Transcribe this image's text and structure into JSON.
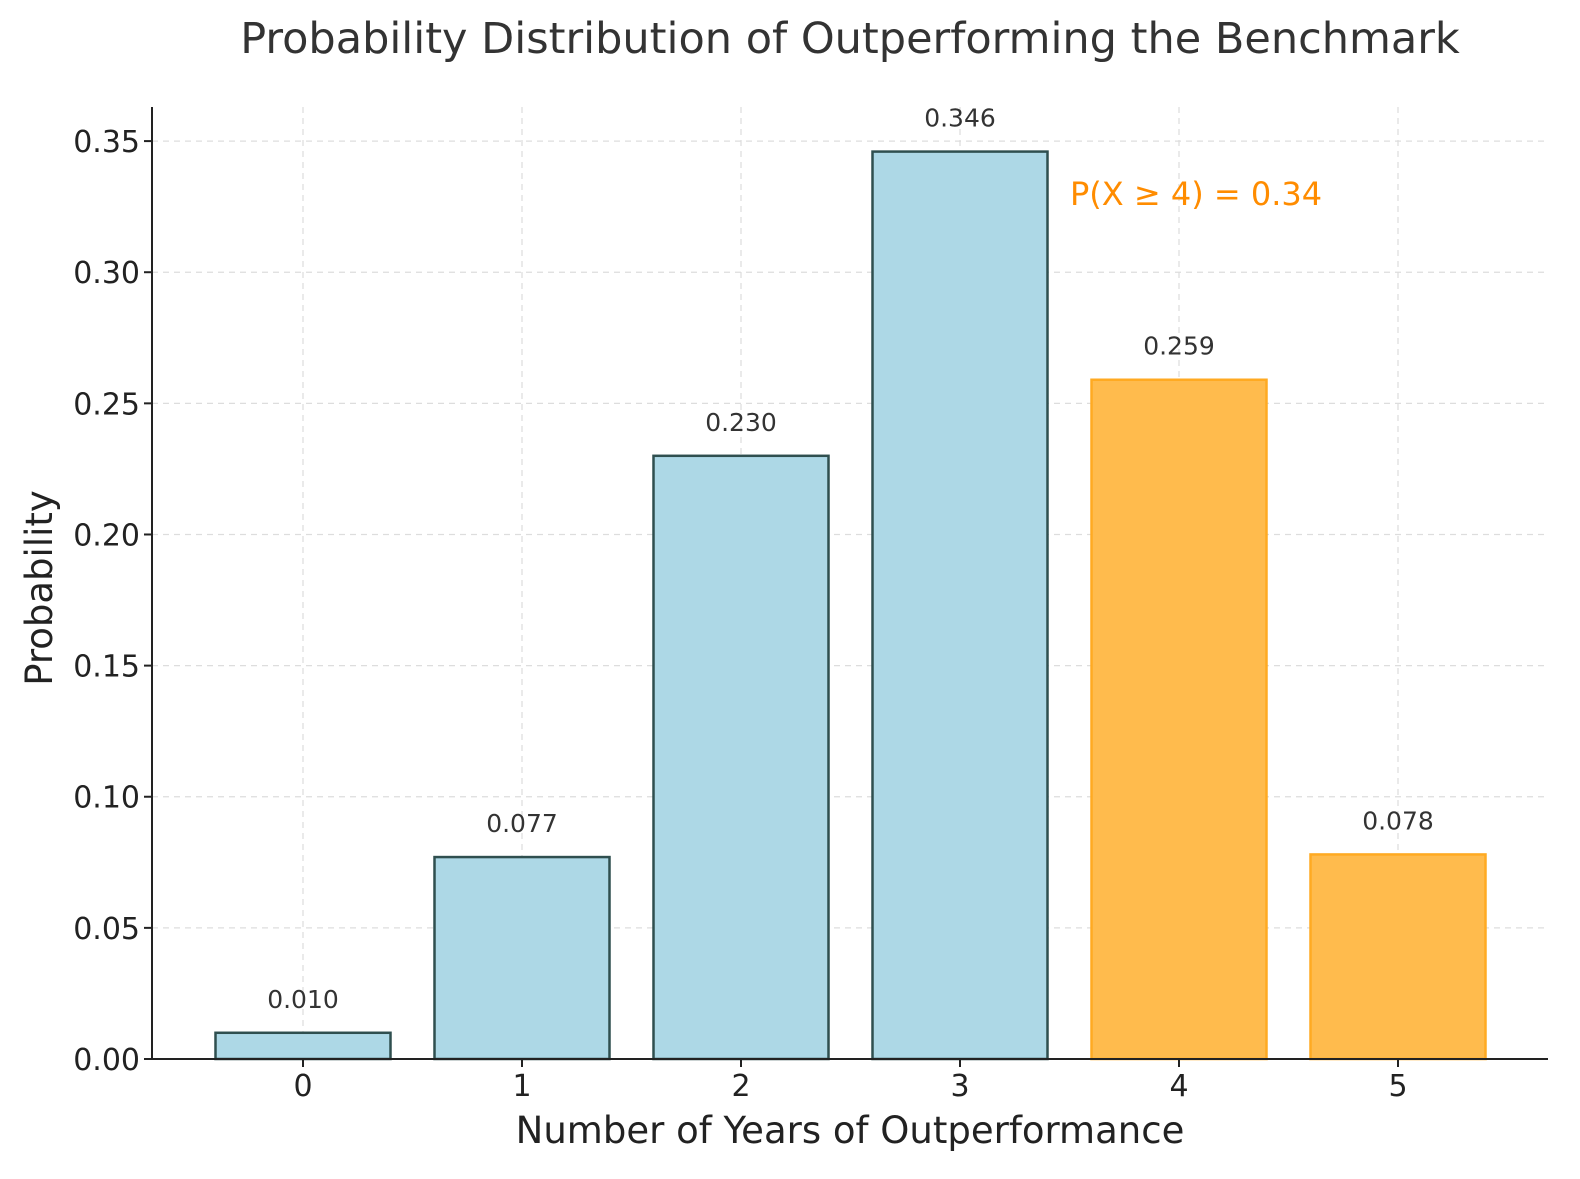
{
  "chart_data": {
    "type": "bar",
    "title": "Probability Distribution of Outperforming the Benchmark",
    "xlabel": "Number of Years of Outperformance",
    "ylabel": "Probability",
    "categories": [
      "0",
      "1",
      "2",
      "3",
      "4",
      "5"
    ],
    "values": [
      0.01,
      0.077,
      0.23,
      0.346,
      0.259,
      0.078
    ],
    "value_labels": [
      "0.010",
      "0.077",
      "0.230",
      "0.346",
      "0.259",
      "0.078"
    ],
    "highlighted": [
      false,
      false,
      false,
      false,
      true,
      true
    ],
    "ylim": [
      0,
      0.363
    ],
    "yticks": [
      0.0,
      0.05,
      0.1,
      0.15,
      0.2,
      0.25,
      0.3,
      0.35
    ],
    "ytick_labels": [
      "0.00",
      "0.05",
      "0.10",
      "0.15",
      "0.20",
      "0.25",
      "0.30",
      "0.35"
    ],
    "grid": true,
    "annotation": {
      "text": "P(X ≥ 4) = 0.34"
    },
    "colors": {
      "bar": "#add8e6",
      "bar_edge": "#2f4f4f",
      "highlight": "#ffbb4d",
      "highlight_edge": "#ffaa22",
      "annotation": "#ff8c00"
    }
  }
}
